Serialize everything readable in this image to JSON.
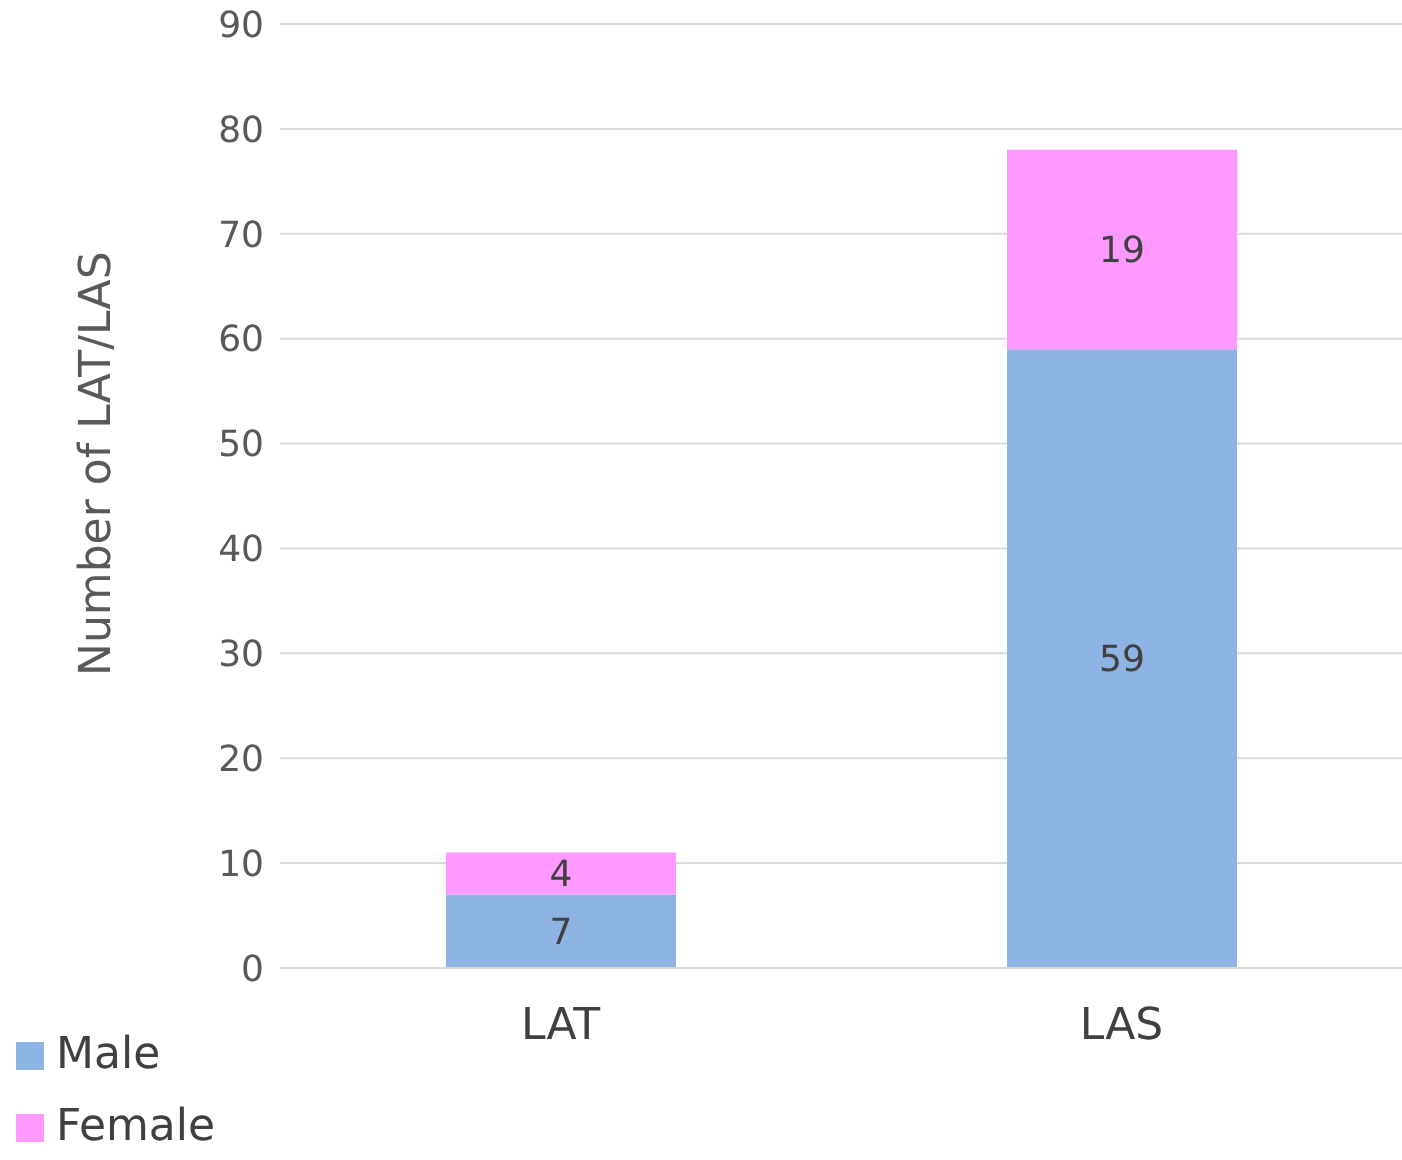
{
  "chart_data": {
    "type": "bar",
    "ylabel": "Number of LAT/LAS",
    "categories": [
      "LAT",
      "LAS"
    ],
    "stacked": true,
    "data_labels": true,
    "series": [
      {
        "name": "Male",
        "color": "#8eb4e3",
        "values": [
          7,
          59
        ]
      },
      {
        "name": "Female",
        "color": "#ff99ff",
        "values": [
          4,
          19
        ]
      }
    ],
    "ylim": [
      0,
      90
    ],
    "yticks": [
      0,
      10,
      20,
      30,
      40,
      50,
      60,
      70,
      80,
      90
    ],
    "grid": "y",
    "legend": "bottom left"
  }
}
